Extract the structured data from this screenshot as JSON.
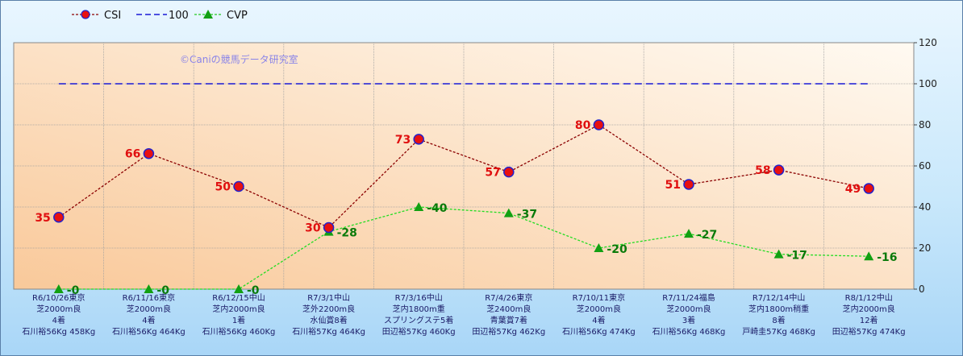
{
  "watermark": "©Caniの競馬データ研究室",
  "legend": [
    {
      "label": "CSI",
      "color": "#b00000",
      "marker": "circle-icon"
    },
    {
      "label": "100",
      "color": "#1a1ad6",
      "marker": "dash-icon"
    },
    {
      "label": "CVP",
      "color": "#22cc22",
      "marker": "triangle-icon"
    }
  ],
  "colors": {
    "csi_line": "#8b0000",
    "csi_marker_fill": "#e81010",
    "csi_marker_stroke": "#2222cc",
    "ref_line": "#1a1ad6",
    "cvp_line": "#22dd22",
    "cvp_marker": "#12a012",
    "plot_bg_top": "#fffaf2",
    "plot_bg_bottom": "#f9c99a"
  },
  "chart_data": {
    "type": "line",
    "categories": [
      [
        "R6/10/26東京",
        "芝2000m良",
        "4着",
        "石川裕56Kg 458Kg"
      ],
      [
        "R6/11/16東京",
        "芝2000m良",
        "4着",
        "石川裕56Kg 464Kg"
      ],
      [
        "R6/12/15中山",
        "芝内2000m良",
        "1着",
        "石川裕56Kg 460Kg"
      ],
      [
        "R7/3/1中山",
        "芝外2200m良",
        "水仙賞8着",
        "石川裕57Kg 464Kg"
      ],
      [
        "R7/3/16中山",
        "芝内1800m重",
        "スプリングステ5着",
        "田辺裕57Kg 460Kg"
      ],
      [
        "R7/4/26東京",
        "芝2400m良",
        "青葉賞7着",
        "田辺裕57Kg 462Kg"
      ],
      [
        "R7/10/11東京",
        "芝2000m良",
        "4着",
        "石川裕56Kg 474Kg"
      ],
      [
        "R7/11/24福島",
        "芝2000m良",
        "3着",
        "石川裕56Kg 468Kg"
      ],
      [
        "R7/12/14中山",
        "芝内1800m稍重",
        "8着",
        "戸崎圭57Kg 468Kg"
      ],
      [
        "R8/1/12中山",
        "芝内2000m良",
        "12着",
        "田辺裕57Kg 474Kg"
      ]
    ],
    "series": [
      {
        "name": "CSI",
        "values": [
          35,
          66,
          50,
          30,
          73,
          57,
          80,
          51,
          58,
          49
        ]
      },
      {
        "name": "100",
        "values": [
          100,
          100,
          100,
          100,
          100,
          100,
          100,
          100,
          100,
          100
        ]
      },
      {
        "name": "CVP",
        "values": [
          0,
          0,
          0,
          28,
          40,
          37,
          20,
          27,
          17,
          16
        ]
      }
    ],
    "y_ticks": [
      "0",
      "20",
      "40",
      "60",
      "80",
      "100",
      "120"
    ],
    "ylim": [
      0,
      120
    ],
    "grid": true,
    "legend_position": "top-left",
    "y_axis_side": "right"
  }
}
